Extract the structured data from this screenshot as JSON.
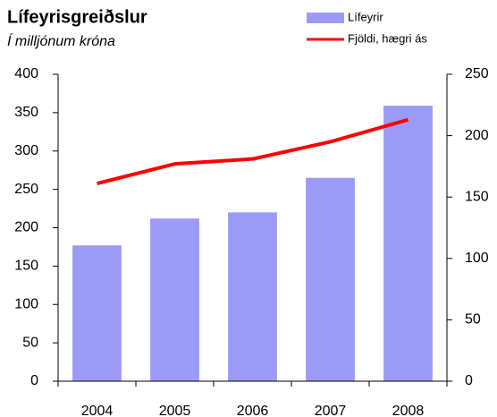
{
  "chart_data": {
    "type": "bar",
    "title": "Lífeyrisgreiðslur",
    "subtitle": "Í milljónum króna",
    "categories": [
      "2004",
      "2005",
      "2006",
      "2007",
      "2008"
    ],
    "series": [
      {
        "name": "Lífeyrir",
        "color": "#9b9bf7",
        "values": [
          177,
          212,
          220,
          265,
          359
        ]
      },
      {
        "name": "Fjöldi, hægri ás",
        "color": "#ff0000",
        "axis": "y2",
        "values": [
          161,
          177,
          181,
          195,
          213
        ]
      }
    ],
    "ylim": [
      0,
      400
    ],
    "yticks": [
      0,
      50,
      100,
      150,
      200,
      250,
      300,
      350,
      400
    ],
    "y2lim": [
      0,
      250
    ],
    "y2ticks": [
      0,
      50,
      100,
      150,
      200,
      250
    ],
    "grid": false,
    "legend": "top-right"
  }
}
